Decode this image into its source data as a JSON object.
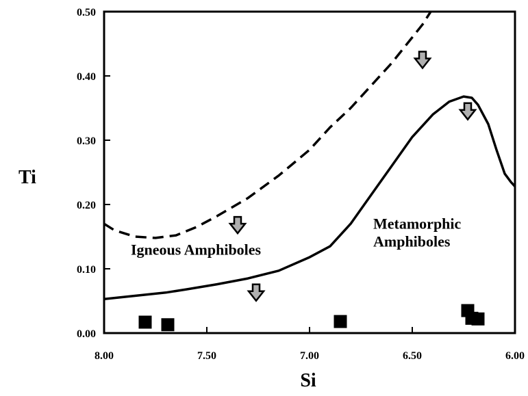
{
  "chart_data": {
    "type": "scatter",
    "xlabel": "Si",
    "ylabel": "Ti",
    "xlim": [
      8.0,
      6.0
    ],
    "ylim": [
      0.0,
      0.5
    ],
    "x_reversed": true,
    "x_ticks": [
      "8.00",
      "7.50",
      "7.00",
      "6.50",
      "6.00"
    ],
    "x_tick_values": [
      8.0,
      7.5,
      7.0,
      6.5,
      6.0
    ],
    "y_ticks": [
      "0.00",
      "0.10",
      "0.20",
      "0.30",
      "0.40",
      "0.50"
    ],
    "y_tick_values": [
      0.0,
      0.1,
      0.2,
      0.3,
      0.4,
      0.5
    ],
    "grid": false,
    "legend": "none",
    "points": [
      {
        "x": 7.8,
        "y": 0.017
      },
      {
        "x": 7.69,
        "y": 0.013
      },
      {
        "x": 6.85,
        "y": 0.018
      },
      {
        "x": 6.23,
        "y": 0.035
      },
      {
        "x": 6.21,
        "y": 0.023
      },
      {
        "x": 6.18,
        "y": 0.022
      }
    ],
    "lines": [
      {
        "style": "dashed",
        "points": [
          [
            8.0,
            0.17
          ],
          [
            7.95,
            0.16
          ],
          [
            7.85,
            0.15
          ],
          [
            7.75,
            0.148
          ],
          [
            7.65,
            0.152
          ],
          [
            7.55,
            0.165
          ],
          [
            7.45,
            0.182
          ],
          [
            7.3,
            0.21
          ],
          [
            7.15,
            0.245
          ],
          [
            7.0,
            0.285
          ],
          [
            6.9,
            0.32
          ],
          [
            6.8,
            0.35
          ],
          [
            6.7,
            0.385
          ],
          [
            6.6,
            0.42
          ],
          [
            6.55,
            0.44
          ],
          [
            6.5,
            0.46
          ],
          [
            6.45,
            0.48
          ],
          [
            6.4,
            0.505
          ]
        ]
      },
      {
        "style": "solid",
        "points": [
          [
            8.0,
            0.053
          ],
          [
            7.85,
            0.058
          ],
          [
            7.7,
            0.063
          ],
          [
            7.6,
            0.068
          ],
          [
            7.45,
            0.076
          ],
          [
            7.3,
            0.085
          ],
          [
            7.15,
            0.097
          ],
          [
            7.0,
            0.118
          ],
          [
            6.9,
            0.135
          ],
          [
            6.8,
            0.17
          ],
          [
            6.7,
            0.215
          ],
          [
            6.6,
            0.26
          ],
          [
            6.5,
            0.305
          ],
          [
            6.4,
            0.34
          ],
          [
            6.32,
            0.36
          ],
          [
            6.25,
            0.368
          ],
          [
            6.21,
            0.366
          ],
          [
            6.18,
            0.355
          ],
          [
            6.13,
            0.325
          ],
          [
            6.09,
            0.285
          ],
          [
            6.05,
            0.248
          ],
          [
            6.02,
            0.235
          ],
          [
            6.0,
            0.228
          ]
        ]
      }
    ],
    "arrows": [
      {
        "x": 6.45,
        "y": 0.425
      },
      {
        "x": 6.23,
        "y": 0.345
      },
      {
        "x": 7.35,
        "y": 0.168
      },
      {
        "x": 7.26,
        "y": 0.063
      }
    ],
    "annotations": [
      {
        "lines": [
          "Igneous Amphiboles"
        ],
        "x": 7.87,
        "y": 0.122
      },
      {
        "lines": [
          "Metamorphic",
          "Amphiboles"
        ],
        "x": 6.69,
        "y": 0.162
      }
    ]
  }
}
